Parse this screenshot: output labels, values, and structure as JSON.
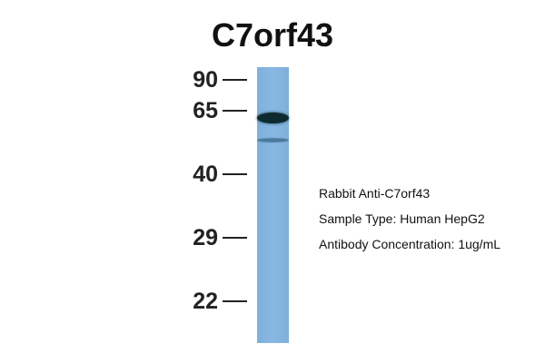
{
  "title": "C7orf43",
  "markers": [
    "90",
    "65",
    "40",
    "29",
    "22"
  ],
  "lane": {
    "color": "#84b4e0",
    "bands": [
      "main band below 65",
      "faint band below main band"
    ]
  },
  "info": {
    "antibody": "Rabbit Anti-C7orf43",
    "sample": "Sample Type: Human HepG2",
    "concentration": "Antibody Concentration: 1ug/mL"
  }
}
